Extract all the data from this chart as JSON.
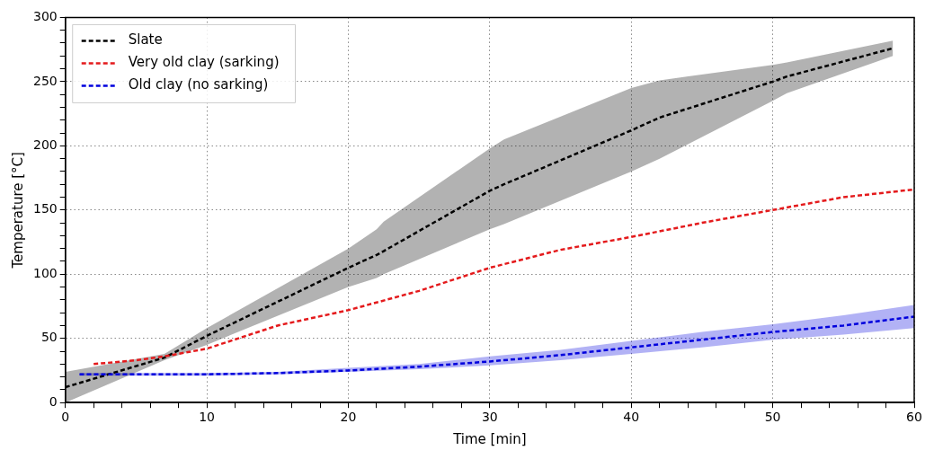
{
  "chart_data": {
    "type": "line",
    "xlabel": "Time [min]",
    "ylabel": "Temperature [°C]",
    "xlim": [
      0,
      60
    ],
    "ylim": [
      0,
      300
    ],
    "xticks": [
      0,
      {
        "value": 2,
        "label": null
      },
      {
        "value": 4,
        "label": null
      },
      {
        "value": 6,
        "label": null
      },
      {
        "value": 8,
        "label": null
      },
      10,
      {
        "value": 12,
        "label": null
      },
      {
        "value": 14,
        "label": null
      },
      {
        "value": 16,
        "label": null
      },
      {
        "value": 18,
        "label": null
      },
      20,
      {
        "value": 22,
        "label": null
      },
      {
        "value": 24,
        "label": null
      },
      {
        "value": 26,
        "label": null
      },
      {
        "value": 28,
        "label": null
      },
      30,
      {
        "value": 32,
        "label": null
      },
      {
        "value": 34,
        "label": null
      },
      {
        "value": 36,
        "label": null
      },
      {
        "value": 38,
        "label": null
      },
      40,
      {
        "value": 42,
        "label": null
      },
      {
        "value": 44,
        "label": null
      },
      {
        "value": 46,
        "label": null
      },
      {
        "value": 48,
        "label": null
      },
      50,
      {
        "value": 52,
        "label": null
      },
      {
        "value": 54,
        "label": null
      },
      {
        "value": 56,
        "label": null
      },
      {
        "value": 58,
        "label": null
      },
      60
    ],
    "yticks": [
      0,
      {
        "value": 10,
        "label": null
      },
      {
        "value": 20,
        "label": null
      },
      {
        "value": 30,
        "label": null
      },
      {
        "value": 40,
        "label": null
      },
      50,
      {
        "value": 60,
        "label": null
      },
      {
        "value": 70,
        "label": null
      },
      {
        "value": 80,
        "label": null
      },
      {
        "value": 90,
        "label": null
      },
      100,
      {
        "value": 110,
        "label": null
      },
      {
        "value": 120,
        "label": null
      },
      {
        "value": 130,
        "label": null
      },
      {
        "value": 140,
        "label": null
      },
      150,
      {
        "value": 160,
        "label": null
      },
      {
        "value": 170,
        "label": null
      },
      {
        "value": 180,
        "label": null
      },
      {
        "value": 190,
        "label": null
      },
      200,
      {
        "value": 210,
        "label": null
      },
      {
        "value": 220,
        "label": null
      },
      {
        "value": 230,
        "label": null
      },
      {
        "value": 240,
        "label": null
      },
      250,
      {
        "value": 260,
        "label": null
      },
      {
        "value": 270,
        "label": null
      },
      {
        "value": 280,
        "label": null
      },
      {
        "value": 290,
        "label": null
      },
      300
    ],
    "grid": true,
    "legend": "top left",
    "marker": "none",
    "line_style": "dashed",
    "series": [
      {
        "name": "Slate",
        "color": "#000000",
        "x": [
          0,
          7,
          10,
          20,
          22,
          22.5,
          30,
          31,
          40,
          42,
          50,
          51,
          58.5
        ],
        "values": [
          12,
          35,
          52,
          105,
          115,
          118,
          165,
          170,
          212,
          222,
          250,
          254,
          276
        ],
        "lower": [
          0,
          33,
          45,
          90,
          97,
          100,
          135,
          139,
          180,
          190,
          235,
          241,
          270
        ],
        "upper": [
          24,
          38,
          58,
          120,
          135,
          141,
          198,
          205,
          245,
          251,
          263,
          265,
          282
        ]
      },
      {
        "name": "Very old clay (sarking)",
        "color": "#e41a1c",
        "x": [
          2,
          5,
          7,
          10,
          15,
          20,
          25,
          30,
          35,
          40,
          45,
          50,
          55,
          60
        ],
        "values": [
          30,
          33,
          36,
          42,
          60,
          72,
          87,
          105,
          119,
          129,
          140,
          150,
          160,
          166
        ]
      },
      {
        "name": "Old clay (no sarking)",
        "color": "#0000dd",
        "x": [
          1,
          5,
          10,
          15,
          20,
          25,
          30,
          35,
          40,
          45,
          50,
          55,
          60
        ],
        "values": [
          22,
          22,
          22,
          23,
          25,
          28,
          32,
          37,
          43,
          49,
          55,
          60,
          67
        ],
        "lower": [
          21,
          21,
          21,
          22,
          24,
          26,
          29,
          33,
          38,
          43,
          49,
          53,
          58
        ],
        "upper": [
          23,
          23,
          23,
          24,
          27,
          30,
          36,
          41,
          48,
          55,
          61,
          68,
          76
        ]
      }
    ]
  }
}
